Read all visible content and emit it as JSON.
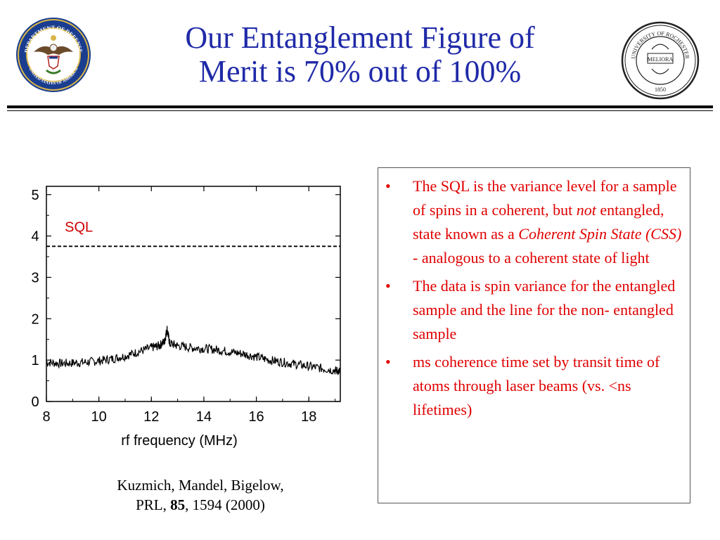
{
  "slide": {
    "title_line1": "Our Entanglement Figure of",
    "title_line2": "Merit is 70% out of 100%"
  },
  "logos": {
    "left": {
      "icon": "dod-seal-icon",
      "text_top": "DEPARTMENT OF DEFENSE",
      "text_bottom": "UNITED STATES OF AMERICA"
    },
    "right": {
      "icon": "rochester-seal-icon",
      "text_ring": "UNIVERSITY OF ROCHESTER",
      "motto": "MELIORA",
      "year": "1850"
    }
  },
  "chart_data": {
    "type": "line",
    "xlabel": "rf frequency (MHz)",
    "ylabel": "",
    "xlim": [
      8,
      19.2
    ],
    "ylim": [
      0,
      5.2
    ],
    "x_ticks": [
      "8",
      "10",
      "12",
      "14",
      "16",
      "18"
    ],
    "y_ticks": [
      "0",
      "1",
      "2",
      "3",
      "4",
      "5"
    ],
    "grid": false,
    "annotations": [
      {
        "text": "SQL",
        "x": 8.7,
        "y": 4.1
      }
    ],
    "series": [
      {
        "style": "dashed",
        "x": [
          8,
          19.2
        ],
        "y": [
          3.75,
          3.75
        ]
      },
      {
        "style": "solid",
        "x": [
          8,
          8.5,
          9,
          9.5,
          10,
          10.5,
          11,
          11.5,
          12,
          12.3,
          12.5,
          12.6,
          12.7,
          13,
          13.5,
          14,
          14.5,
          15,
          15.5,
          16,
          16.5,
          17,
          17.5,
          18,
          18.5,
          19,
          19.2
        ],
        "y": [
          0.95,
          0.92,
          0.93,
          0.95,
          0.98,
          1.03,
          1.1,
          1.2,
          1.3,
          1.35,
          1.45,
          1.75,
          1.4,
          1.35,
          1.3,
          1.28,
          1.25,
          1.2,
          1.15,
          1.08,
          1.0,
          0.95,
          0.9,
          0.85,
          0.8,
          0.75,
          0.73
        ]
      }
    ]
  },
  "caption": {
    "line1": "Kuzmich, Mandel, Bigelow,",
    "line2_pre": "PRL, ",
    "line2_bold": "85",
    "line2_post": ", 1594 (2000)"
  },
  "bullets": {
    "marker": "•",
    "b1_a": "The SQL is the variance level for a sample of spins in a coherent, but ",
    "b1_em1": "not",
    "b1_b": " entangled, state known as a ",
    "b1_em2": "Coherent Spin State (CSS) -",
    "b1_c": " analogous to a coherent state of light",
    "b2": "The data is spin variance for the entangled sample and the line for the non- entangled sample",
    "b3": "ms coherence time set by transit time of atoms through laser beams (vs. <ns lifetimes)"
  }
}
